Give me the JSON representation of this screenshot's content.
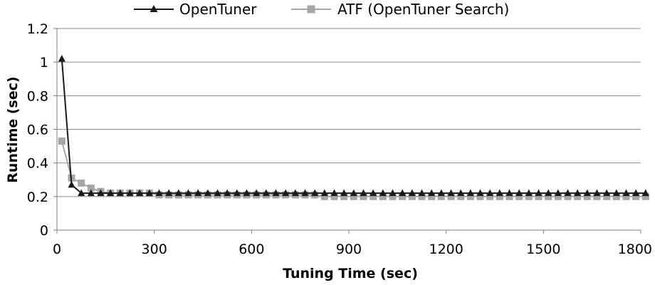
{
  "chart_data": {
    "type": "line",
    "title": "",
    "xlabel": "Tuning Time (sec)",
    "ylabel": "Runtime (sec)",
    "xlim": [
      0,
      1800
    ],
    "ylim": [
      0,
      1.2
    ],
    "x_ticks": [
      "0",
      "300",
      "600",
      "900",
      "1200",
      "1500",
      "1800"
    ],
    "y_ticks": [
      "0",
      "0.2",
      "0.4",
      "0.6",
      "0.8",
      "1",
      "1.2"
    ],
    "grid": "horizontal",
    "legend_position": "top",
    "x": [
      15,
      45,
      75,
      105,
      135,
      165,
      195,
      225,
      255,
      285,
      315,
      345,
      375,
      405,
      435,
      465,
      495,
      525,
      555,
      585,
      615,
      645,
      675,
      705,
      735,
      765,
      795,
      825,
      855,
      885,
      915,
      945,
      975,
      1005,
      1035,
      1065,
      1095,
      1125,
      1155,
      1185,
      1215,
      1245,
      1275,
      1305,
      1335,
      1365,
      1395,
      1425,
      1455,
      1485,
      1515,
      1545,
      1575,
      1605,
      1635,
      1665,
      1695,
      1725,
      1755,
      1785,
      1815
    ],
    "series": [
      {
        "name": "OpenTuner",
        "color": "#1a1a1a",
        "marker": "triangle",
        "values": [
          1.02,
          0.27,
          0.22,
          0.22,
          0.22,
          0.22,
          0.22,
          0.22,
          0.22,
          0.22,
          0.22,
          0.22,
          0.22,
          0.22,
          0.22,
          0.22,
          0.22,
          0.22,
          0.22,
          0.22,
          0.22,
          0.22,
          0.22,
          0.22,
          0.22,
          0.22,
          0.22,
          0.22,
          0.22,
          0.22,
          0.22,
          0.22,
          0.22,
          0.22,
          0.22,
          0.22,
          0.22,
          0.22,
          0.22,
          0.22,
          0.22,
          0.22,
          0.22,
          0.22,
          0.22,
          0.22,
          0.22,
          0.22,
          0.22,
          0.22,
          0.22,
          0.22,
          0.22,
          0.22,
          0.22,
          0.22,
          0.22,
          0.22,
          0.22,
          0.22,
          0.22
        ]
      },
      {
        "name": "ATF (OpenTuner Search)",
        "color": "#a6a6a6",
        "marker": "square",
        "values": [
          0.53,
          0.31,
          0.28,
          0.25,
          0.23,
          0.22,
          0.22,
          0.22,
          0.22,
          0.22,
          0.21,
          0.21,
          0.21,
          0.21,
          0.21,
          0.21,
          0.21,
          0.21,
          0.21,
          0.21,
          0.21,
          0.21,
          0.21,
          0.21,
          0.21,
          0.21,
          0.21,
          0.2,
          0.2,
          0.2,
          0.2,
          0.2,
          0.2,
          0.2,
          0.2,
          0.2,
          0.2,
          0.2,
          0.2,
          0.2,
          0.2,
          0.2,
          0.2,
          0.2,
          0.2,
          0.2,
          0.2,
          0.2,
          0.2,
          0.2,
          0.2,
          0.2,
          0.2,
          0.2,
          0.2,
          0.2,
          0.2,
          0.2,
          0.2,
          0.2,
          0.2
        ]
      }
    ]
  }
}
